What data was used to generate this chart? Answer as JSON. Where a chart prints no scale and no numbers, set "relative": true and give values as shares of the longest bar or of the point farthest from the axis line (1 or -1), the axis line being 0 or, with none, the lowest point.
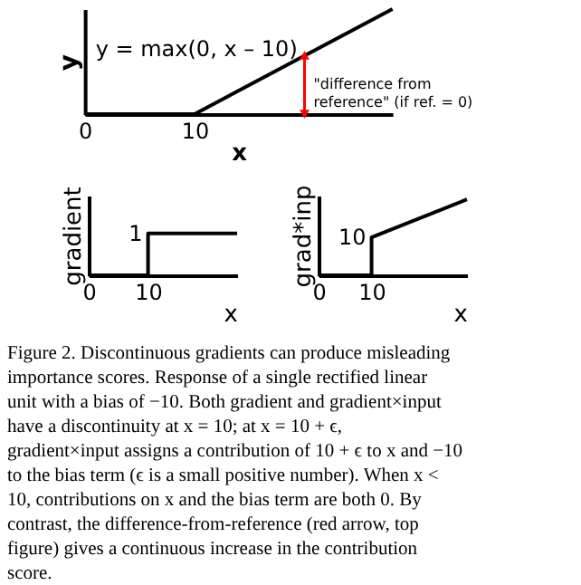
{
  "chart_data": [
    {
      "type": "line",
      "relative": true,
      "xlabel": "x",
      "ylabel": "y",
      "x": [
        0,
        10,
        28
      ],
      "xlim": [
        0,
        28
      ],
      "xticks": [
        0,
        10
      ],
      "tick_labels": "x",
      "grid": false,
      "series": [
        {
          "color": "#000000",
          "values": [
            0,
            0,
            1
          ]
        }
      ],
      "annotations": [
        "y = max(0, x – 10)",
        {
          "text": "\"difference from\nreference\" (if ref. = 0)",
          "x": 20,
          "y": 0.56
        }
      ]
    },
    {
      "type": "line",
      "ylabel": "gradient",
      "xlabel": "x",
      "x": [
        0,
        10,
        10,
        25
      ],
      "xlim": [
        0,
        25
      ],
      "xticks": [
        0,
        10
      ],
      "ylim": [
        0,
        1.9
      ],
      "tick_labels": "x",
      "grid": false,
      "series": [
        {
          "color": "#000000",
          "values": [
            0,
            0,
            1,
            1
          ],
          "value_labels": [
            null,
            null,
            "1",
            null
          ]
        }
      ]
    },
    {
      "type": "line",
      "ylabel": "grad*inp",
      "xlabel": "x",
      "x": [
        0,
        10,
        10,
        28
      ],
      "xlim": [
        0,
        28
      ],
      "xticks": [
        0,
        10
      ],
      "ylim": [
        0,
        21
      ],
      "tick_labels": "x",
      "grid": false,
      "series": [
        {
          "color": "#000000",
          "values": [
            0,
            0,
            10,
            20
          ],
          "value_labels": [
            null,
            null,
            "10",
            null
          ]
        }
      ]
    },
    {
      "type": "other",
      "annotations": [
        "Figure 2. Discontinuous gradients can produce misleading importance scores. Response of a single rectified linear unit with a bias of −10. Both gradient and gradient×input have a discontinuity at x = 10; at x = 10 + ϵ, gradient×input assigns a contribution of 10 + ϵ to x and −10 to the bias term (ϵ is a small positive number). When x < 10, contributions on x and the bias term are both 0. By contrast, the difference-from-reference (red arrow, top figure) gives a continuous increase in the contribution score."
      ]
    }
  ]
}
